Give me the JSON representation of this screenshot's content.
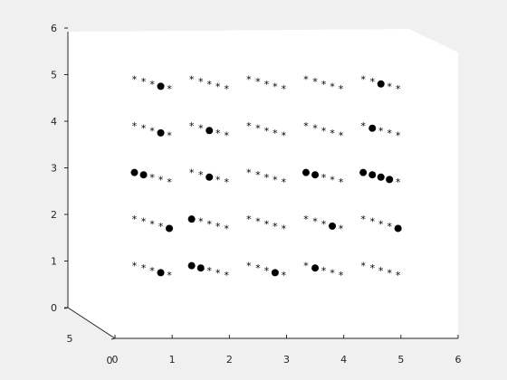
{
  "chart_data": {
    "type": "scatter",
    "view": "3d",
    "background_color": "#f0f0f0",
    "plot_color": "#ffffff",
    "marker_color": "#000000",
    "grid": false,
    "legend": "none",
    "xlim": [
      0,
      6
    ],
    "ylim": [
      0,
      6
    ],
    "xticks": [
      "0",
      "1",
      "2",
      "3",
      "4",
      "5",
      "6"
    ],
    "yticks": [
      "0",
      "1",
      "2",
      "3",
      "4",
      "5",
      "6"
    ],
    "depth_ticks": [
      "0",
      "5"
    ],
    "grid_columns": [
      0.4,
      1.4,
      2.4,
      3.4,
      4.4
    ],
    "grid_rows": [
      0.9,
      1.9,
      2.9,
      3.9,
      4.9
    ],
    "offsets": [
      [
        -0.06,
        0
      ],
      [
        0.1,
        -0.05
      ],
      [
        0.25,
        -0.1
      ],
      [
        0.4,
        -0.15
      ],
      [
        0.55,
        -0.2
      ]
    ],
    "series": [
      {
        "marker": "asterisk"
      },
      {
        "marker": "filled-circle"
      }
    ],
    "highlighted": [
      [
        0,
        0,
        3
      ],
      [
        0,
        1,
        4
      ],
      [
        0,
        2,
        0
      ],
      [
        0,
        2,
        1
      ],
      [
        0,
        3,
        3
      ],
      [
        0,
        4,
        3
      ],
      [
        1,
        0,
        0
      ],
      [
        1,
        0,
        1
      ],
      [
        1,
        1,
        0
      ],
      [
        1,
        2,
        2
      ],
      [
        1,
        3,
        2
      ],
      [
        2,
        0,
        3
      ],
      [
        3,
        0,
        1
      ],
      [
        3,
        1,
        3
      ],
      [
        3,
        2,
        0
      ],
      [
        3,
        2,
        1
      ],
      [
        4,
        1,
        4
      ],
      [
        4,
        2,
        0
      ],
      [
        4,
        2,
        1
      ],
      [
        4,
        2,
        2
      ],
      [
        4,
        2,
        3
      ],
      [
        4,
        3,
        1
      ],
      [
        4,
        4,
        2
      ]
    ]
  }
}
